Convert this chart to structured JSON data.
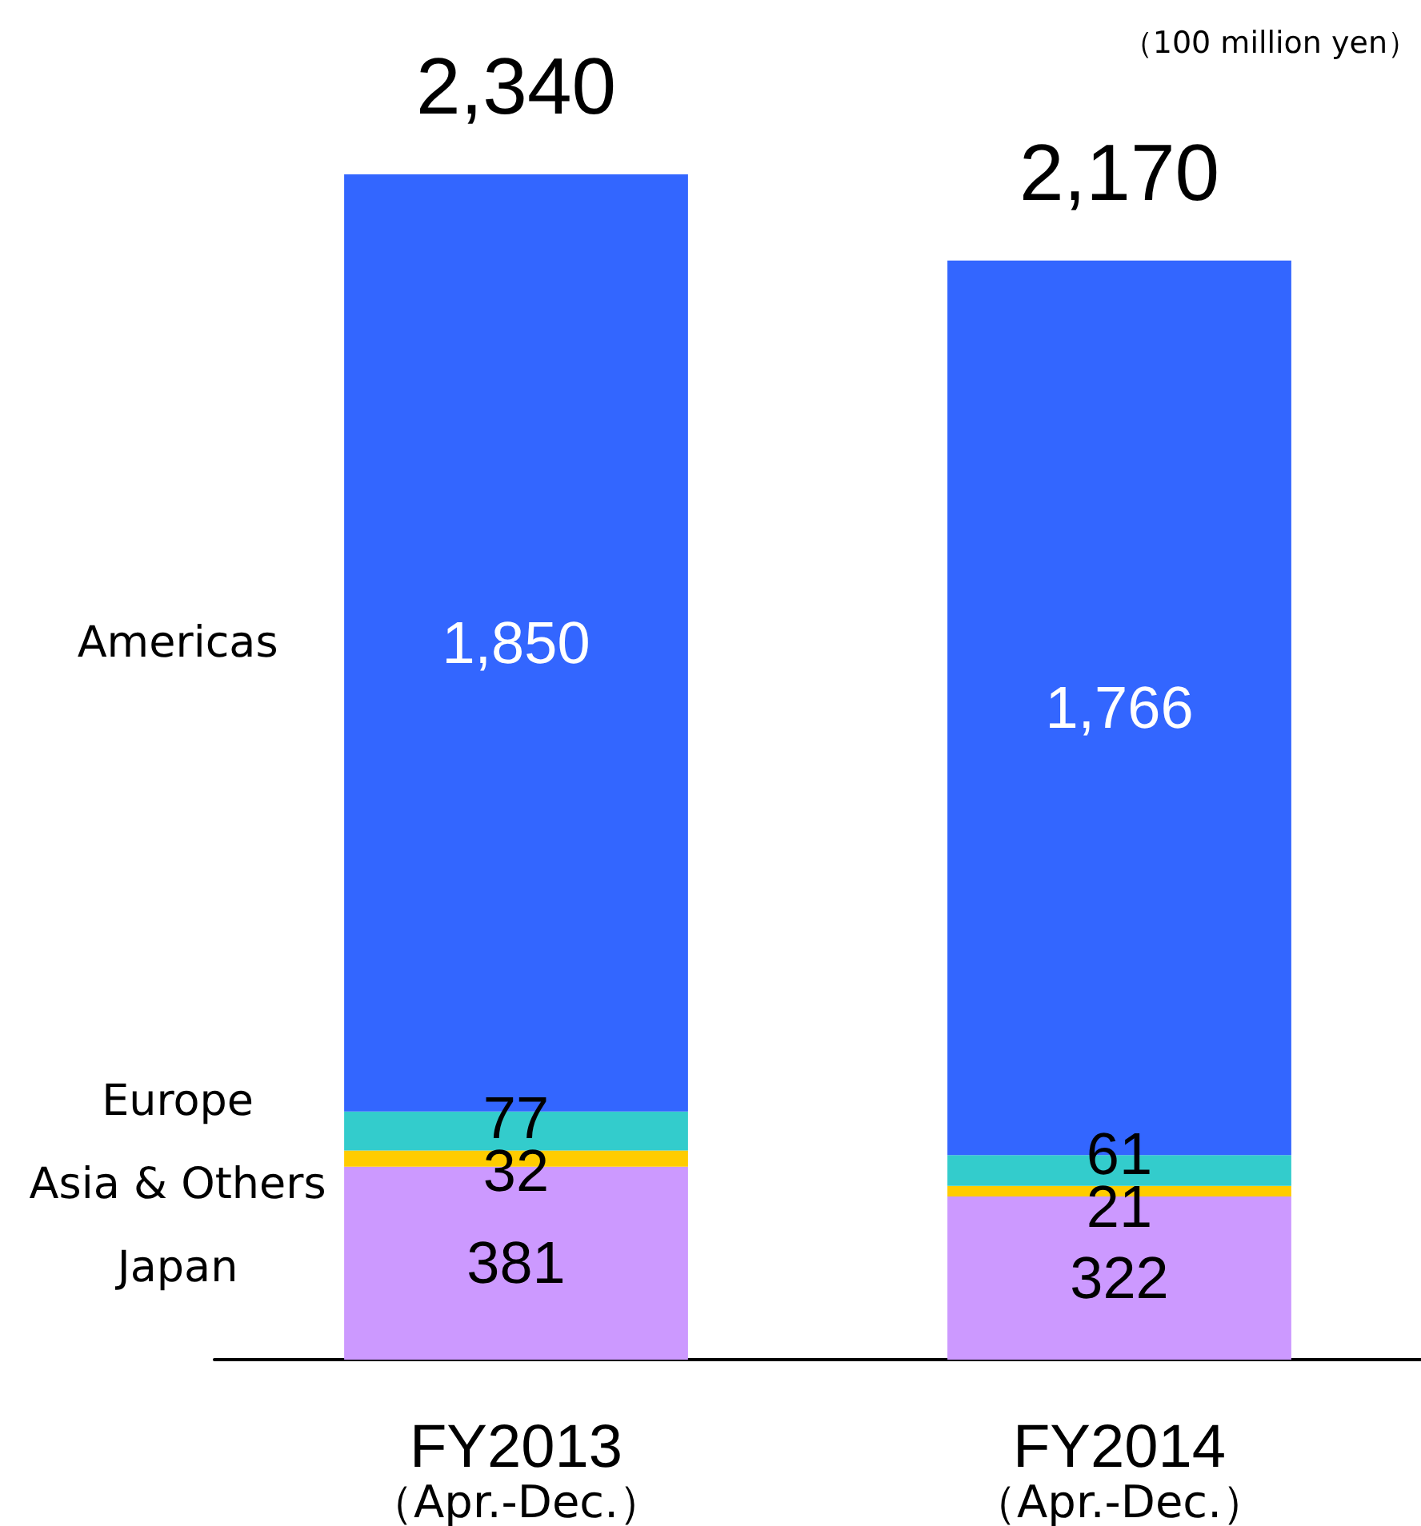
{
  "chart_data": {
    "type": "bar",
    "stacked": true,
    "categories": [
      "FY2013\n（Apr.-Dec.）",
      "FY2014\n（Apr.-Dec.）"
    ],
    "series": [
      {
        "name": "Japan",
        "color": "#cc99ff",
        "values": [
          381,
          322
        ],
        "value_labels": [
          "381",
          "322"
        ]
      },
      {
        "name": "Asia & Others",
        "color": "#ffcc00",
        "values": [
          32,
          21
        ],
        "value_labels": [
          "32",
          "21"
        ]
      },
      {
        "name": "Europe",
        "color": "#33cccc",
        "values": [
          77,
          61
        ],
        "value_labels": [
          "77",
          "61"
        ]
      },
      {
        "name": "Americas",
        "color": "#3366ff",
        "values": [
          1850,
          1766
        ],
        "value_labels": [
          "1,850",
          "1,766"
        ]
      }
    ],
    "totals": [
      "2,340",
      "2,170"
    ],
    "annotations": [
      "（100 million yen）"
    ],
    "legend": false
  }
}
